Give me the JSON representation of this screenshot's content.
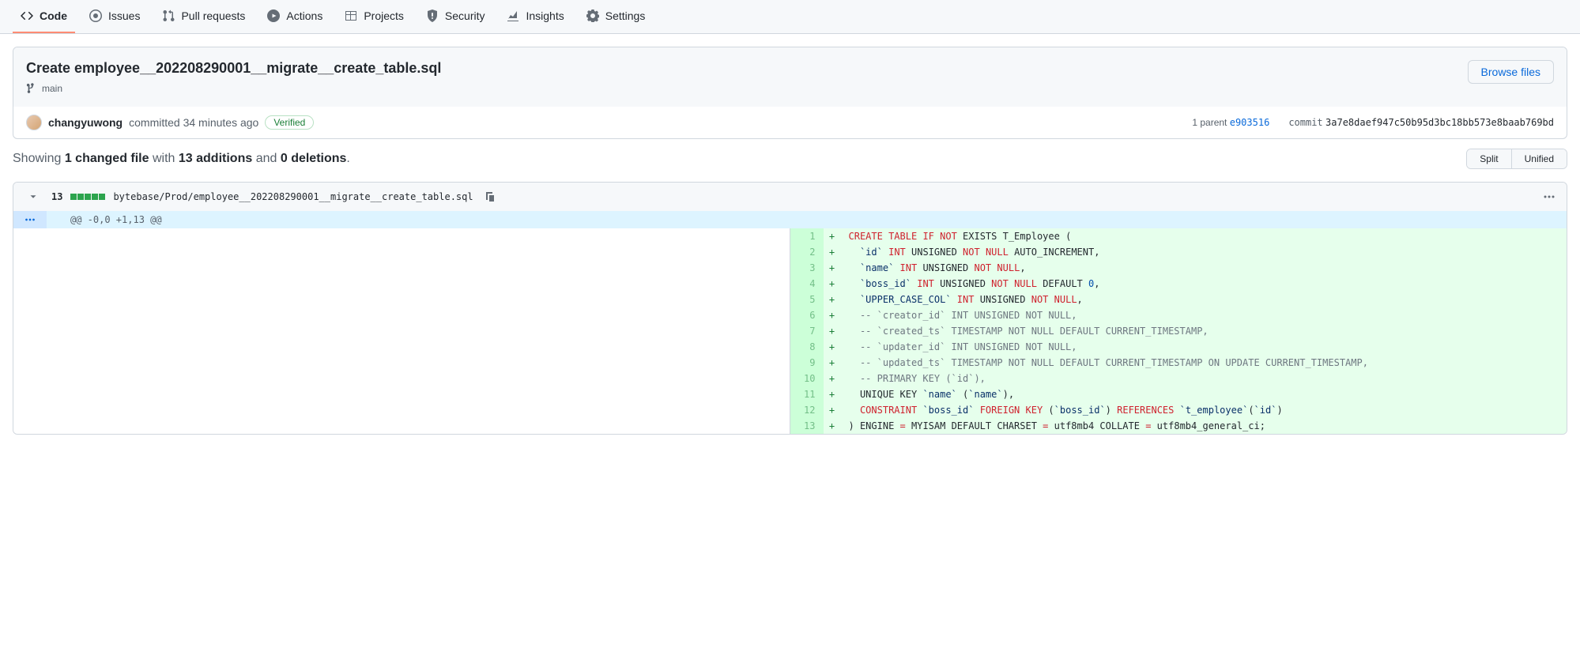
{
  "nav": {
    "tabs": [
      {
        "label": "Code",
        "selected": true
      },
      {
        "label": "Issues",
        "selected": false
      },
      {
        "label": "Pull requests",
        "selected": false
      },
      {
        "label": "Actions",
        "selected": false
      },
      {
        "label": "Projects",
        "selected": false
      },
      {
        "label": "Security",
        "selected": false
      },
      {
        "label": "Insights",
        "selected": false
      },
      {
        "label": "Settings",
        "selected": false
      }
    ]
  },
  "commit": {
    "title": "Create employee__202208290001__migrate__create_table.sql",
    "branch": "main",
    "author": "changyuwong",
    "action_text": "committed 34 minutes ago",
    "verified_label": "Verified",
    "parent_label": "1 parent",
    "parent_sha": "e903516",
    "commit_label": "commit",
    "commit_sha": "3a7e8daef947c50b95d3bc18bb573e8baab769bd",
    "browse_label": "Browse files"
  },
  "summary": {
    "showing": "Showing",
    "files_bold": "1 changed file",
    "with": " with ",
    "additions_bold": "13 additions",
    "and": " and ",
    "deletions_bold": "0 deletions",
    "split_label": "Split",
    "unified_label": "Unified"
  },
  "file": {
    "change_count": "13",
    "diff_blocks": 5,
    "path": "bytebase/Prod/employee__202208290001__migrate__create_table.sql",
    "hunk_header": "@@ -0,0 +1,13 @@"
  },
  "diff": [
    {
      "n": 1,
      "tokens": [
        {
          "t": "CREATE TABLE",
          "c": "k-red"
        },
        {
          "t": " "
        },
        {
          "t": "IF",
          "c": "k-red"
        },
        {
          "t": " "
        },
        {
          "t": "NOT",
          "c": "k-red"
        },
        {
          "t": " EXISTS T_Employee ("
        }
      ]
    },
    {
      "n": 2,
      "tokens": [
        {
          "t": "  "
        },
        {
          "t": "`id`",
          "c": "k-str"
        },
        {
          "t": " "
        },
        {
          "t": "INT",
          "c": "k-red"
        },
        {
          "t": " UNSIGNED "
        },
        {
          "t": "NOT",
          "c": "k-red"
        },
        {
          "t": " "
        },
        {
          "t": "NULL",
          "c": "k-red"
        },
        {
          "t": " AUTO_INCREMENT,"
        }
      ]
    },
    {
      "n": 3,
      "tokens": [
        {
          "t": "  "
        },
        {
          "t": "`name`",
          "c": "k-str"
        },
        {
          "t": " "
        },
        {
          "t": "INT",
          "c": "k-red"
        },
        {
          "t": " UNSIGNED "
        },
        {
          "t": "NOT",
          "c": "k-red"
        },
        {
          "t": " "
        },
        {
          "t": "NULL",
          "c": "k-red"
        },
        {
          "t": ","
        }
      ]
    },
    {
      "n": 4,
      "tokens": [
        {
          "t": "  "
        },
        {
          "t": "`boss_id`",
          "c": "k-str"
        },
        {
          "t": " "
        },
        {
          "t": "INT",
          "c": "k-red"
        },
        {
          "t": " UNSIGNED "
        },
        {
          "t": "NOT",
          "c": "k-red"
        },
        {
          "t": " "
        },
        {
          "t": "NULL",
          "c": "k-red"
        },
        {
          "t": " DEFAULT "
        },
        {
          "t": "0",
          "c": "k-blue"
        },
        {
          "t": ","
        }
      ]
    },
    {
      "n": 5,
      "tokens": [
        {
          "t": "  "
        },
        {
          "t": "`UPPER_CASE_COL`",
          "c": "k-str"
        },
        {
          "t": " "
        },
        {
          "t": "INT",
          "c": "k-red"
        },
        {
          "t": " UNSIGNED "
        },
        {
          "t": "NOT",
          "c": "k-red"
        },
        {
          "t": " "
        },
        {
          "t": "NULL",
          "c": "k-red"
        },
        {
          "t": ","
        }
      ]
    },
    {
      "n": 6,
      "tokens": [
        {
          "t": "  "
        },
        {
          "t": "-- `creator_id` INT UNSIGNED NOT NULL,",
          "c": "k-gray"
        }
      ]
    },
    {
      "n": 7,
      "tokens": [
        {
          "t": "  "
        },
        {
          "t": "-- `created_ts` TIMESTAMP NOT NULL DEFAULT CURRENT_TIMESTAMP,",
          "c": "k-gray"
        }
      ]
    },
    {
      "n": 8,
      "tokens": [
        {
          "t": "  "
        },
        {
          "t": "-- `updater_id` INT UNSIGNED NOT NULL,",
          "c": "k-gray"
        }
      ]
    },
    {
      "n": 9,
      "tokens": [
        {
          "t": "  "
        },
        {
          "t": "-- `updated_ts` TIMESTAMP NOT NULL DEFAULT CURRENT_TIMESTAMP ON UPDATE CURRENT_TIMESTAMP,",
          "c": "k-gray"
        }
      ]
    },
    {
      "n": 10,
      "tokens": [
        {
          "t": "  "
        },
        {
          "t": "-- PRIMARY KEY (`id`),",
          "c": "k-gray"
        }
      ]
    },
    {
      "n": 11,
      "tokens": [
        {
          "t": "  UNIQUE KEY "
        },
        {
          "t": "`name`",
          "c": "k-str"
        },
        {
          "t": " ("
        },
        {
          "t": "`name`",
          "c": "k-str"
        },
        {
          "t": "),"
        }
      ]
    },
    {
      "n": 12,
      "tokens": [
        {
          "t": "  "
        },
        {
          "t": "CONSTRAINT",
          "c": "k-red"
        },
        {
          "t": " "
        },
        {
          "t": "`boss_id`",
          "c": "k-str"
        },
        {
          "t": " "
        },
        {
          "t": "FOREIGN KEY",
          "c": "k-red"
        },
        {
          "t": " ("
        },
        {
          "t": "`boss_id`",
          "c": "k-str"
        },
        {
          "t": ") "
        },
        {
          "t": "REFERENCES",
          "c": "k-red"
        },
        {
          "t": " "
        },
        {
          "t": "`t_employee`",
          "c": "k-str"
        },
        {
          "t": "("
        },
        {
          "t": "`id`",
          "c": "k-str"
        },
        {
          "t": ")"
        }
      ]
    },
    {
      "n": 13,
      "tokens": [
        {
          "t": ") ENGINE "
        },
        {
          "t": "=",
          "c": "k-red"
        },
        {
          "t": " MYISAM DEFAULT CHARSET "
        },
        {
          "t": "=",
          "c": "k-red"
        },
        {
          "t": " utf8mb4 COLLATE "
        },
        {
          "t": "=",
          "c": "k-red"
        },
        {
          "t": " utf8mb4_general_ci;"
        }
      ]
    }
  ],
  "colors": {
    "nav_bg": "#f6f8fa",
    "border": "#d0d7de",
    "accent_orange": "#fd8c73",
    "link_blue": "#0969da",
    "addition_green": "#2da44e",
    "addition_bg": "#e6ffec",
    "addition_ln_bg": "#ccffd8",
    "hunk_bg": "#ddf4ff",
    "keyword_red": "#cf222e",
    "number_blue": "#0550ae",
    "comment_gray": "#6e7781",
    "string_navy": "#0a3069"
  }
}
